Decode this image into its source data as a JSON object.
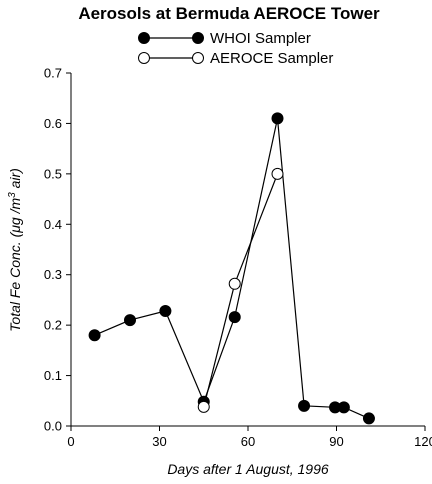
{
  "chart_data": {
    "type": "line",
    "title": "Aerosols at Bermuda AEROCE Tower",
    "xlabel": "Days after 1 August, 1996",
    "ylabel_prefix": "Total Fe Conc. (",
    "ylabel_mu": "μ",
    "ylabel_mid": "g /m",
    "ylabel_sup": "3",
    "ylabel_suffix": " air)",
    "xlim": [
      0,
      120
    ],
    "ylim": [
      0,
      0.7
    ],
    "xticks": [
      0,
      30,
      60,
      90,
      120
    ],
    "xtick_labels": [
      "0",
      "30",
      "60",
      "90",
      "120"
    ],
    "yticks": [
      0,
      0.1,
      0.2,
      0.3,
      0.4,
      0.5,
      0.6,
      0.7
    ],
    "ytick_labels": [
      "0.0",
      "0.1",
      "0.2",
      "0.3",
      "0.4",
      "0.5",
      "0.6",
      "0.7"
    ],
    "legend_position": "top",
    "grid": false,
    "series": [
      {
        "name": "WHOI Sampler",
        "marker": "filled-circle",
        "color": "#000000",
        "x": [
          8,
          20,
          32,
          45,
          55.5,
          70,
          79,
          89.5,
          92.5,
          101
        ],
        "y": [
          0.18,
          0.21,
          0.228,
          0.048,
          0.216,
          0.61,
          0.04,
          0.037,
          0.037,
          0.015
        ]
      },
      {
        "name": "AEROCE Sampler",
        "marker": "open-circle",
        "color": "#000000",
        "x": [
          45,
          55.5,
          70
        ],
        "y": [
          0.038,
          0.282,
          0.5
        ]
      }
    ]
  }
}
